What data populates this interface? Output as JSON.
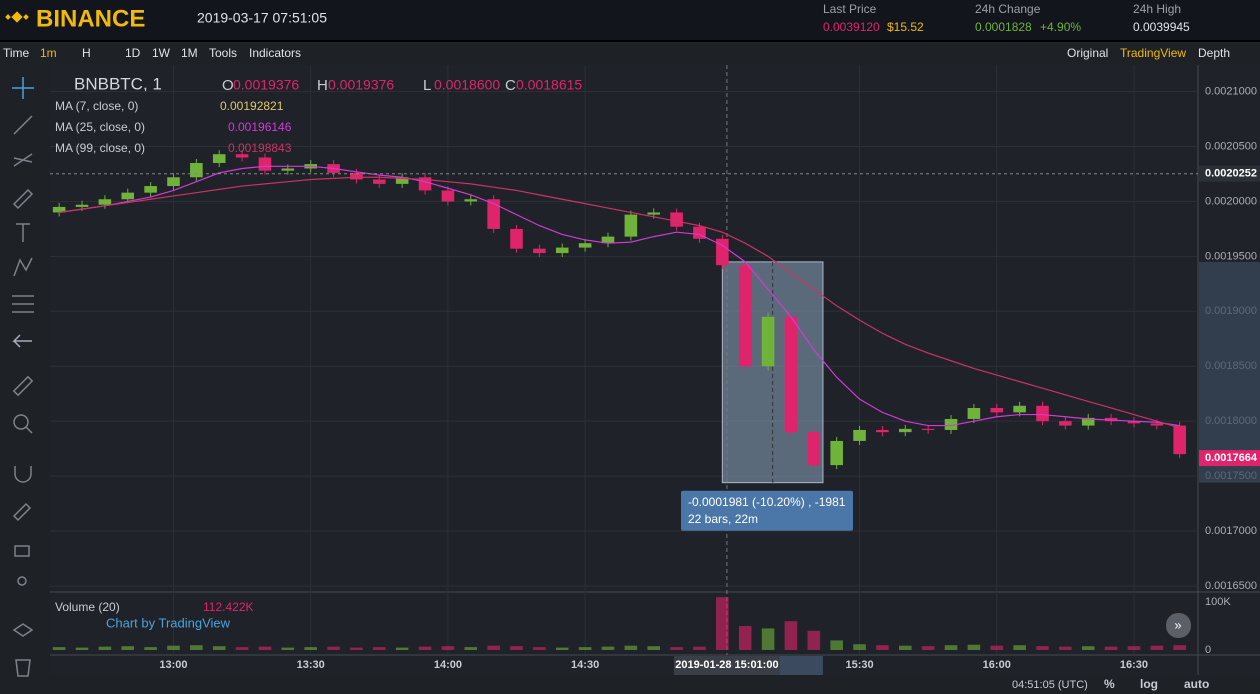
{
  "header": {
    "logo": "BINANCE",
    "datetime": "2019-03-17 07:51:05",
    "last_price": {
      "label": "Last Price",
      "value": "0.0039120",
      "usd": "$15.52"
    },
    "change": {
      "label": "24h Change",
      "value": "0.0001828",
      "percent": "+4.90%"
    },
    "high": {
      "label": "24h High",
      "value": "0.0039945"
    }
  },
  "toolbar": {
    "left": [
      "Time",
      "1m",
      "H",
      "1D",
      "1W",
      "1M",
      "Tools",
      "Indicators"
    ],
    "right": [
      "Original",
      "TradingView",
      "Depth"
    ]
  },
  "legend": {
    "symbol": "BNBBTC, 1",
    "ohlc": [
      {
        "key": "O",
        "value": "0.0019376"
      },
      {
        "key": "H",
        "value": "0.0019376"
      },
      {
        "key": "L",
        "value": "0.0018600"
      },
      {
        "key": "C",
        "value": "0.0018615"
      }
    ],
    "ma": [
      {
        "label": "MA (7, close, 0)",
        "value": "0.00192821",
        "color": "#e3c86a"
      },
      {
        "label": "MA (25, close, 0)",
        "value": "0.00196146",
        "color": "#d23ad6"
      },
      {
        "label": "MA (99, close, 0)",
        "value": "0.00198843",
        "color": "#c93465"
      }
    ]
  },
  "price_chart": {
    "ylim": [
      0.0016445,
      0.0021242
    ],
    "yticks": [
      {
        "value": 0.0021,
        "label": "0.0021000"
      },
      {
        "value": 0.00205,
        "label": "0.0020500"
      },
      {
        "value": 0.002,
        "label": "0.0020000"
      },
      {
        "value": 0.00195,
        "label": "0.0019500"
      },
      {
        "value": 0.0019,
        "label": "0.0019000"
      },
      {
        "value": 0.00185,
        "label": "0.0018500"
      },
      {
        "value": 0.0018,
        "label": "0.0018000"
      },
      {
        "value": 0.00175,
        "label": "0.0017500"
      },
      {
        "value": 0.0017,
        "label": "0.0017000"
      },
      {
        "value": 0.00165,
        "label": "0.0016500"
      }
    ],
    "xlim": [
      "12:33",
      "16:44"
    ],
    "xticks": [
      "13:00",
      "13:30",
      "14:00",
      "14:30",
      "15:30",
      "16:00",
      "16:30"
    ],
    "x": [
      "12:35",
      "12:40",
      "12:45",
      "12:50",
      "12:55",
      "13:00",
      "13:05",
      "13:10",
      "13:15",
      "13:20",
      "13:25",
      "13:30",
      "13:35",
      "13:40",
      "13:45",
      "13:50",
      "13:55",
      "14:00",
      "14:05",
      "14:10",
      "14:15",
      "14:20",
      "14:25",
      "14:30",
      "14:35",
      "14:40",
      "14:45",
      "14:50",
      "14:55",
      "15:00",
      "15:05",
      "15:10",
      "15:15",
      "15:20",
      "15:25",
      "15:30",
      "15:35",
      "15:40",
      "15:45",
      "15:50",
      "15:55",
      "16:00",
      "16:05",
      "16:10",
      "16:15",
      "16:20",
      "16:25",
      "16:30",
      "16:35",
      "16:40"
    ],
    "close": [
      0.001995,
      0.001997,
      0.002002,
      0.002008,
      0.002014,
      0.002022,
      0.002035,
      0.002043,
      0.00204,
      0.002028,
      0.00203,
      0.002034,
      0.002026,
      0.00202,
      0.002016,
      0.002022,
      0.00201,
      0.002,
      0.002002,
      0.001975,
      0.001957,
      0.001953,
      0.001958,
      0.001962,
      0.001968,
      0.001988,
      0.00199,
      0.001977,
      0.001966,
      0.001942,
      0.00185,
      0.001895,
      0.00179,
      0.00176,
      0.001782,
      0.001792,
      0.00179,
      0.001793,
      0.001792,
      0.001802,
      0.001812,
      0.001808,
      0.001814,
      0.0018,
      0.001796,
      0.001803,
      0.0018,
      0.001798,
      0.001796,
      0.00177
    ],
    "ma25": [
      0.00199,
      0.001993,
      0.001996,
      0.002,
      0.002004,
      0.00201,
      0.002018,
      0.002026,
      0.00203,
      0.002032,
      0.002032,
      0.002032,
      0.00203,
      0.002027,
      0.002024,
      0.002022,
      0.002018,
      0.002012,
      0.002006,
      0.001998,
      0.001988,
      0.001978,
      0.00197,
      0.001965,
      0.001962,
      0.001963,
      0.001968,
      0.001972,
      0.00197,
      0.00196,
      0.001945,
      0.00192,
      0.001895,
      0.001865,
      0.00184,
      0.00182,
      0.001808,
      0.0018,
      0.001796,
      0.001796,
      0.0018,
      0.001804,
      0.001806,
      0.001806,
      0.001804,
      0.001802,
      0.001801,
      0.0018,
      0.001799,
      0.001796
    ],
    "ma99": [
      0.00199,
      0.001993,
      0.001996,
      0.001999,
      0.002002,
      0.002005,
      0.002008,
      0.002011,
      0.002014,
      0.002016,
      0.002018,
      0.00202,
      0.002021,
      0.002022,
      0.002022,
      0.002021,
      0.00202,
      0.002018,
      0.002016,
      0.002013,
      0.00201,
      0.002006,
      0.002002,
      0.001998,
      0.001994,
      0.00199,
      0.001986,
      0.001982,
      0.001978,
      0.001972,
      0.001962,
      0.00195,
      0.001935,
      0.00192,
      0.001905,
      0.001892,
      0.00188,
      0.00187,
      0.001862,
      0.001855,
      0.001848,
      0.001842,
      0.001836,
      0.00183,
      0.001824,
      0.001818,
      0.001812,
      0.001806,
      0.0018,
      0.001794
    ],
    "up_color": "#6fb33b",
    "down_color": "#e0246c",
    "price_tags": [
      {
        "value": 0.0020252,
        "label": "0.0020252",
        "color": "#2b2f36"
      },
      {
        "value": 0.0017664,
        "label": "0.0017664",
        "color": "#e0246c"
      }
    ],
    "crosshair": "2019-01-28 15:01:00",
    "measure": {
      "from": "15:00",
      "to": "15:22",
      "top": 0.001945,
      "bottom": 0.001744,
      "line1": "-0.0001981 (-10.20%) , -1981",
      "line2": "22 bars, 22m"
    }
  },
  "volume": {
    "title": "Volume (20)",
    "value": "112.422K",
    "brand": "Chart by TradingView",
    "ylim": [
      0,
      112.5
    ],
    "yticks": [
      {
        "value": 100,
        "label": "100K"
      },
      0
    ],
    "values": [
      6,
      5,
      7,
      8,
      6,
      9,
      10,
      8,
      6,
      7,
      5,
      6,
      7,
      5,
      6,
      5,
      7,
      8,
      6,
      9,
      8,
      6,
      5,
      6,
      7,
      9,
      8,
      6,
      7,
      110,
      50,
      45,
      60,
      40,
      20,
      12,
      10,
      9,
      8,
      10,
      11,
      9,
      10,
      8,
      7,
      8,
      7,
      8,
      9,
      10
    ]
  },
  "footer": {
    "time": "04:51:05 (UTC)",
    "items": [
      "%",
      "log",
      "auto"
    ]
  }
}
